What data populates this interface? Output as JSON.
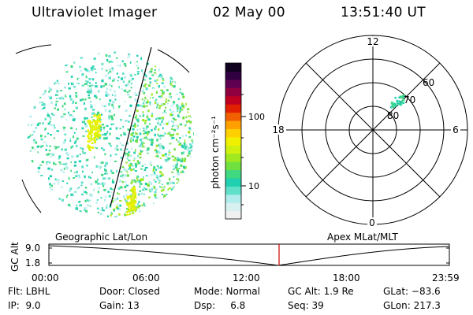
{
  "header": {
    "title": "Ultraviolet Imager",
    "date": "02 May 00",
    "time": "13:51:40 UT"
  },
  "colorbar": {
    "unit_label": "photon cm⁻²s⁻¹",
    "ticks": [
      "100",
      "10"
    ],
    "colors": [
      "#f0f0f0",
      "#d8f0f0",
      "#b0ecec",
      "#60e0c8",
      "#20d0b0",
      "#40d880",
      "#70e040",
      "#a0e820",
      "#d0f010",
      "#f0f000",
      "#ffd000",
      "#ffa000",
      "#f06000",
      "#e02000",
      "#c00020",
      "#900040",
      "#600050",
      "#300040",
      "#100020"
    ]
  },
  "polar_plot": {
    "mlt_labels": {
      "top": "12",
      "left": "18",
      "right": "6",
      "bottom": "0"
    },
    "lat_labels": [
      "60",
      "70",
      "80"
    ]
  },
  "timeline": {
    "left_title": "Geographic Lat/Lon",
    "right_title": "Apex MLat/MLT",
    "axis_label": "GC Alt",
    "y_ticks": [
      "9.0",
      "1.8"
    ],
    "x_ticks": [
      "00:00",
      "06:00",
      "12:00",
      "18:00",
      "23:59"
    ],
    "marker_color": "#cc0000"
  },
  "info": {
    "flt": "Flt: LBHL",
    "ip": "IP:  9.0",
    "door": "Door: Closed",
    "gain": "Gain: 13",
    "mode": "Mode: Normal",
    "dsp": "Dsp:     6.8",
    "gc_alt": "GC Alt: 1.9 Re",
    "seq": "Seq: 39",
    "glat": "GLat: −83.6",
    "glon": "GLon: 217.3"
  }
}
